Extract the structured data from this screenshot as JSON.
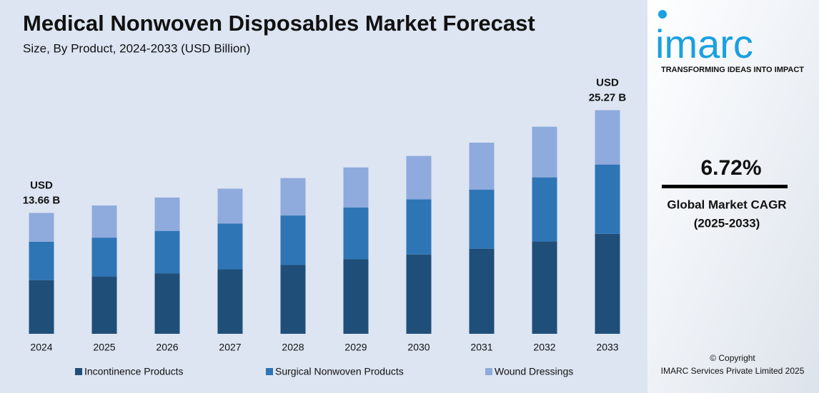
{
  "chart_data": {
    "type": "stacked_bar",
    "title": "Medical Nonwoven Disposables Market Forecast",
    "subtitle": "Size, By Product, 2024-2033 (USD Billion)",
    "categories": [
      "2024",
      "2025",
      "2026",
      "2027",
      "2028",
      "2029",
      "2030",
      "2031",
      "2032",
      "2033"
    ],
    "series": [
      {
        "name": "Incontinence Products",
        "color": "#1f4e79",
        "values": [
          6.07,
          6.48,
          6.84,
          7.29,
          7.78,
          8.42,
          8.96,
          9.62,
          10.45,
          11.3
        ]
      },
      {
        "name": "Surgical Nonwoven Products",
        "color": "#2e75b6",
        "values": [
          4.34,
          4.39,
          4.79,
          5.16,
          5.59,
          5.86,
          6.23,
          6.68,
          7.23,
          7.83
        ]
      },
      {
        "name": "Wound Dressings",
        "color": "#8faadc",
        "values": [
          3.25,
          3.63,
          3.77,
          3.95,
          4.23,
          4.52,
          4.91,
          5.3,
          5.72,
          6.14
        ]
      }
    ],
    "ylim": [
      0,
      27
    ],
    "annotations": [
      {
        "category": "2024",
        "value": 13.66,
        "lines": [
          "USD",
          "13.66 B"
        ]
      },
      {
        "category": "2033",
        "value": 25.27,
        "lines": [
          "USD",
          "25.27 B"
        ]
      }
    ],
    "legend": "bottom"
  },
  "sidebar": {
    "logo": "imarc",
    "tagline": "TRANSFORMING IDEAS INTO IMPACT",
    "cagr": "6.72%",
    "cagr_label": "Global Market CAGR",
    "cagr_period": "(2025-2033)",
    "copyright": "© Copyright",
    "company": "IMARC Services Private Limited 2025"
  }
}
